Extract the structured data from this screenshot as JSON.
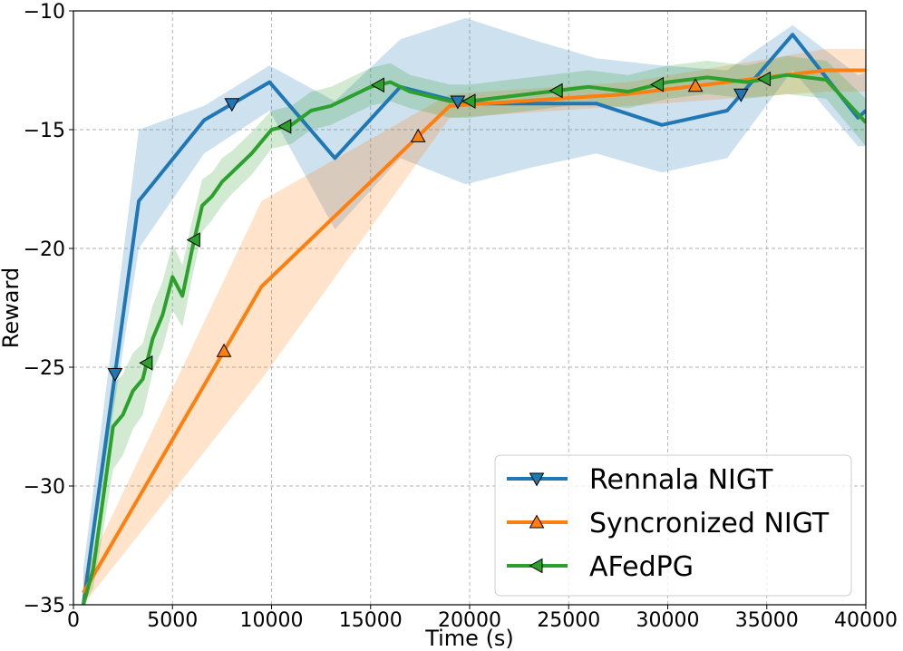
{
  "chart_data": {
    "type": "line",
    "title": "",
    "xlabel": "Time (s)",
    "ylabel": "Reward",
    "xlim": [
      0,
      40000
    ],
    "ylim": [
      -35,
      -10
    ],
    "xticks": [
      0,
      5000,
      10000,
      15000,
      20000,
      25000,
      30000,
      35000,
      40000
    ],
    "xtick_labels": [
      "0",
      "5000",
      "10000",
      "15000",
      "20000",
      "25000",
      "30000",
      "35000",
      "40000"
    ],
    "yticks": [
      -35,
      -30,
      -25,
      -20,
      -15,
      -10
    ],
    "ytick_labels": [
      "−35",
      "−30",
      "−25",
      "−20",
      "−15",
      "−10"
    ],
    "grid": true,
    "legend_position": "bottom-right",
    "series": [
      {
        "name": "Rennala NIGT",
        "color": "#1f77b4",
        "marker": "triangle-down",
        "x": [
          500,
          3300,
          6600,
          9900,
          13200,
          16500,
          19800,
          23100,
          26400,
          29700,
          33000,
          36300,
          39600,
          40000
        ],
        "y": [
          -35.0,
          -18.0,
          -14.6,
          -13.0,
          -16.2,
          -13.2,
          -13.9,
          -13.9,
          -13.9,
          -14.8,
          -14.2,
          -11.0,
          -14.5,
          -14.2
        ],
        "upper": [
          -33.5,
          -15.0,
          -14.0,
          -12.3,
          -13.8,
          -11.2,
          -10.3,
          -11.2,
          -12.0,
          -12.3,
          -12.5,
          -10.6,
          -12.7,
          -12.6
        ],
        "lower": [
          -35.0,
          -20.0,
          -16.0,
          -14.2,
          -19.2,
          -16.2,
          -17.3,
          -16.6,
          -16.0,
          -16.8,
          -16.2,
          -12.5,
          -15.7,
          -15.7
        ],
        "marker_x": [
          2100,
          8000,
          19400,
          33700
        ]
      },
      {
        "name": "Syncronized NIGT",
        "color": "#ff7f0e",
        "marker": "triangle-up",
        "x": [
          500,
          9500,
          19000,
          28000,
          38000,
          40000
        ],
        "y": [
          -34.5,
          -21.6,
          -14.0,
          -13.5,
          -12.5,
          -12.5
        ],
        "upper": [
          -33.8,
          -18.0,
          -13.5,
          -13.0,
          -11.6,
          -11.6
        ],
        "lower": [
          -35.0,
          -25.5,
          -14.5,
          -14.0,
          -13.4,
          -13.4
        ],
        "marker_x": [
          7600,
          17400,
          31400
        ]
      },
      {
        "name": "AFedPG",
        "color": "#2ca02c",
        "marker": "triangle-left",
        "x": [
          500,
          1000,
          1500,
          2000,
          2500,
          3000,
          3500,
          4000,
          4500,
          5000,
          5500,
          6000,
          6500,
          7000,
          7500,
          8000,
          9000,
          10000,
          11000,
          12000,
          13000,
          14000,
          15000,
          16000,
          17000,
          18000,
          19000,
          20000,
          22000,
          24000,
          26000,
          28000,
          30000,
          32000,
          34000,
          36000,
          38000,
          40000
        ],
        "y": [
          -35.0,
          -33.5,
          -30.5,
          -27.5,
          -27.0,
          -26.0,
          -25.5,
          -23.8,
          -22.8,
          -21.2,
          -22.0,
          -20.0,
          -18.2,
          -17.8,
          -17.2,
          -16.8,
          -16.0,
          -15.0,
          -14.8,
          -14.2,
          -14.0,
          -13.6,
          -13.2,
          -13.0,
          -13.4,
          -13.6,
          -13.8,
          -13.8,
          -13.6,
          -13.4,
          -13.2,
          -13.4,
          -13.0,
          -12.8,
          -13.0,
          -12.7,
          -12.9,
          -14.7
        ],
        "spread": [
          0.2,
          0.8,
          1.4,
          1.8,
          1.7,
          1.6,
          1.5,
          1.4,
          1.4,
          1.4,
          1.3,
          1.2,
          1.1,
          1.0,
          1.0,
          0.9,
          0.9,
          0.8,
          0.8,
          0.8,
          0.8,
          0.8,
          0.8,
          0.8,
          0.7,
          0.7,
          0.7,
          0.7,
          0.7,
          0.7,
          0.7,
          0.7,
          0.7,
          0.7,
          0.7,
          0.8,
          0.8,
          1.0
        ],
        "marker_x": [
          3700,
          6100,
          10700,
          15400,
          20000,
          24400,
          29500,
          34900
        ]
      }
    ]
  }
}
